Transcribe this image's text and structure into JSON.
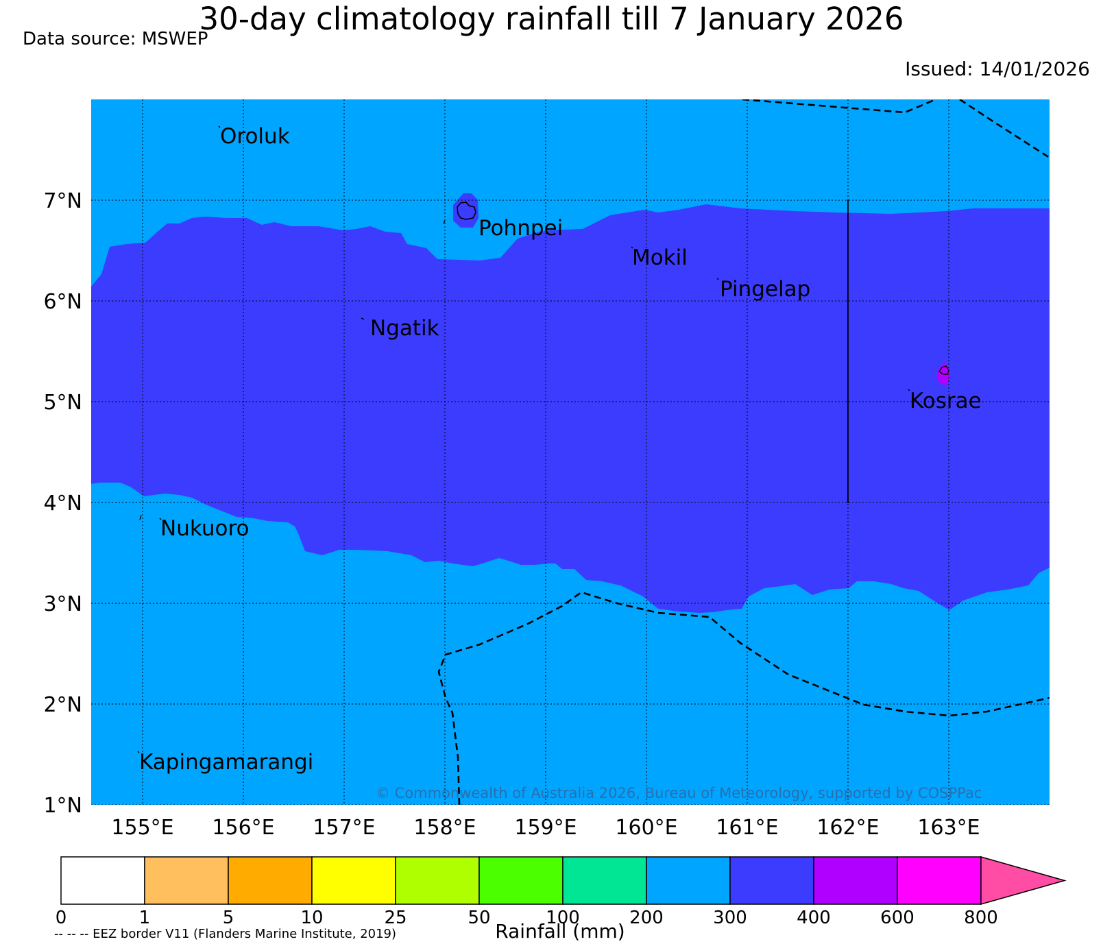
{
  "title": "30-day climatology rainfall till 7 January 2026",
  "data_source": "Data source: MSWEP",
  "issued": "Issued: 14/01/2026",
  "copyright": "© Commonwealth of Australia 2026, Bureau of Meteorology, supported by COSPPac",
  "eez_note": "-- -- -- EEZ border V11 (Flanders Marine Institute, 2019)",
  "map": {
    "lon_range": [
      154.5,
      164.0
    ],
    "lat_range": [
      1.0,
      8.0
    ],
    "lon_ticks": [
      "155°E",
      "156°E",
      "157°E",
      "158°E",
      "159°E",
      "160°E",
      "161°E",
      "162°E",
      "163°E"
    ],
    "lat_ticks": [
      "7°N",
      "6°N",
      "5°N",
      "4°N",
      "3°N",
      "2°N",
      "1°N"
    ],
    "grid": "dotted",
    "places": [
      "Oroluk",
      "Pohnpei",
      "Mokil",
      "Pingelap",
      "Ngatik",
      "Kosrae",
      "Nukuoro",
      "Kapingamarangi"
    ],
    "colors": {
      "ocean_band_200_300": "#00a5ff",
      "band_300_400": "#3c3cff",
      "band_400_600": "#b000ff"
    }
  },
  "colorbar": {
    "label": "Rainfall (mm)",
    "ticks": [
      "0",
      "1",
      "5",
      "10",
      "25",
      "50",
      "100",
      "200",
      "300",
      "400",
      "600",
      "800"
    ],
    "colors": [
      "#ffffff",
      "#ffbf5f",
      "#ffab00",
      "#ffff00",
      "#b0ff00",
      "#4cff00",
      "#00e695",
      "#00a5ff",
      "#3c3cff",
      "#b000ff",
      "#ff00ff",
      "#ff4da6"
    ]
  }
}
